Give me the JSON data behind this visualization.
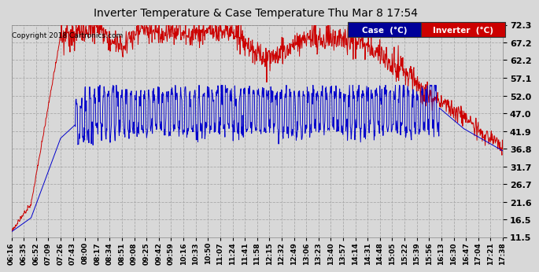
{
  "title": "Inverter Temperature & Case Temperature Thu Mar 8 17:54",
  "copyright": "Copyright 2018 Cartronics.com",
  "bg_color": "#d8d8d8",
  "plot_bg_color": "#d8d8d8",
  "grid_color": "#aaaaaa",
  "case_color": "#0000cc",
  "inverter_color": "#cc0000",
  "ylim": [
    11.5,
    72.3
  ],
  "yticks": [
    11.5,
    16.5,
    21.6,
    26.7,
    31.7,
    36.8,
    41.9,
    47.0,
    52.0,
    57.1,
    62.2,
    67.2,
    72.3
  ],
  "xtick_labels": [
    "06:16",
    "06:35",
    "06:52",
    "07:09",
    "07:26",
    "07:43",
    "08:00",
    "08:17",
    "08:34",
    "08:51",
    "09:08",
    "09:25",
    "09:42",
    "09:59",
    "10:16",
    "10:33",
    "10:50",
    "11:07",
    "11:24",
    "11:41",
    "11:58",
    "12:15",
    "12:32",
    "12:49",
    "13:06",
    "13:23",
    "13:40",
    "13:57",
    "14:14",
    "14:31",
    "14:48",
    "15:05",
    "15:22",
    "15:39",
    "15:56",
    "16:13",
    "16:30",
    "16:47",
    "17:04",
    "17:21",
    "17:38"
  ],
  "legend_case_label": "Case  (°C)",
  "legend_inverter_label": "Inverter  (°C)",
  "legend_case_bg": "#000099",
  "legend_inverter_bg": "#cc0000"
}
